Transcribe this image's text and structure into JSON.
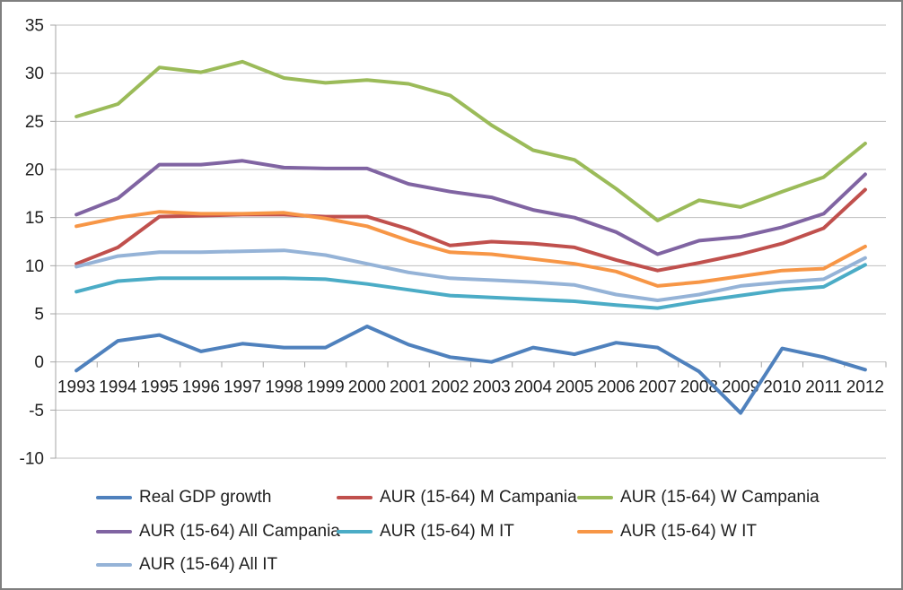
{
  "chart_data": {
    "type": "line",
    "title": "",
    "xlabel": "",
    "ylabel": "",
    "x_categories": [
      "1993",
      "1994",
      "1995",
      "1996",
      "1997",
      "1998",
      "1999",
      "2000",
      "2001",
      "2002",
      "2003",
      "2004",
      "2005",
      "2006",
      "2007",
      "2008",
      "2009",
      "2010",
      "2011",
      "2012"
    ],
    "ylim": [
      -10,
      35
    ],
    "y_ticks": [
      35,
      30,
      25,
      20,
      15,
      10,
      5,
      0,
      -5,
      -10
    ],
    "grid": "horizontal",
    "legend_position": "bottom",
    "grid_color": "#bfbfbf",
    "axis_color": "#a6a6a6",
    "text_color": "#1f1f1f",
    "series": [
      {
        "name": "Real GDP growth",
        "color": "#4f81bd",
        "values": [
          -0.9,
          2.2,
          2.8,
          1.1,
          1.9,
          1.5,
          1.5,
          3.7,
          1.8,
          0.5,
          0.0,
          1.5,
          0.8,
          2.0,
          1.5,
          -1.0,
          -5.3,
          1.4,
          0.5,
          -0.8
        ]
      },
      {
        "name": "AUR (15-64) M Campania",
        "color": "#c0504d",
        "values": [
          10.2,
          11.9,
          15.1,
          15.2,
          15.3,
          15.3,
          15.1,
          15.1,
          13.8,
          12.1,
          12.5,
          12.3,
          11.9,
          10.6,
          9.5,
          10.3,
          11.2,
          12.3,
          13.9,
          17.9
        ]
      },
      {
        "name": "AUR (15-64) W Campania",
        "color": "#9bbb59",
        "values": [
          25.5,
          26.8,
          30.6,
          30.1,
          31.2,
          29.5,
          29.0,
          29.3,
          28.9,
          27.7,
          24.6,
          22.0,
          21.0,
          18.0,
          14.7,
          16.8,
          16.1,
          17.7,
          19.2,
          22.7
        ]
      },
      {
        "name": "AUR (15-64) All Campania",
        "color": "#8064a2",
        "values": [
          15.3,
          17.0,
          20.5,
          20.5,
          20.9,
          20.2,
          20.1,
          20.1,
          18.5,
          17.7,
          17.1,
          15.8,
          15.0,
          13.5,
          11.2,
          12.6,
          13.0,
          14.0,
          15.4,
          19.5
        ]
      },
      {
        "name": "AUR (15-64) M IT",
        "color": "#4bacc6",
        "values": [
          7.3,
          8.4,
          8.7,
          8.7,
          8.7,
          8.7,
          8.6,
          8.1,
          7.5,
          6.9,
          6.7,
          6.5,
          6.3,
          5.9,
          5.6,
          6.3,
          6.9,
          7.5,
          7.8,
          10.1
        ]
      },
      {
        "name": "AUR (15-64) W IT",
        "color": "#f79646",
        "values": [
          14.1,
          15.0,
          15.6,
          15.4,
          15.4,
          15.5,
          14.9,
          14.1,
          12.6,
          11.4,
          11.2,
          10.7,
          10.2,
          9.4,
          7.9,
          8.3,
          8.9,
          9.5,
          9.7,
          12.0
        ]
      },
      {
        "name": "AUR (15-64) All IT",
        "color": "#95b3d7",
        "values": [
          9.9,
          11.0,
          11.4,
          11.4,
          11.5,
          11.6,
          11.1,
          10.2,
          9.3,
          8.7,
          8.5,
          8.3,
          8.0,
          7.0,
          6.4,
          7.0,
          7.9,
          8.3,
          8.6,
          10.8
        ]
      }
    ]
  }
}
